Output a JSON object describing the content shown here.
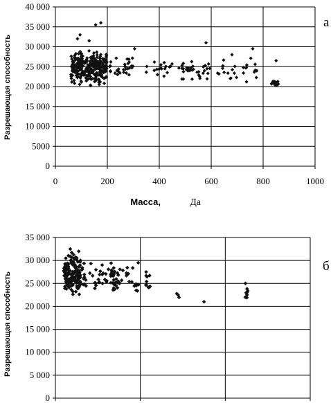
{
  "chart_data": [
    {
      "type": "scatter",
      "panel": "а",
      "xlabel": "Масса,",
      "xlabel_unit": "Да",
      "ylabel": "Разрешающая способность",
      "xlim": [
        0,
        1000
      ],
      "ylim": [
        0,
        40000
      ],
      "x_ticks": [
        "0",
        "200",
        "400",
        "600",
        "800",
        "1000"
      ],
      "y_ticks": [
        "0",
        "5000",
        "10 000",
        "15 000",
        "20 000",
        "25 000",
        "30 000",
        "35 000",
        "40 000"
      ],
      "grid": "vertical and horizontal",
      "clusters": [
        {
          "x_range": [
            60,
            200
          ],
          "y_range": [
            19500,
            30000
          ],
          "count": 320
        },
        {
          "x_range": [
            200,
            300
          ],
          "y_range": [
            21000,
            28500
          ],
          "count": 30
        },
        {
          "x_range": [
            340,
            450
          ],
          "y_range": [
            22000,
            27000
          ],
          "count": 18
        },
        {
          "x_range": [
            470,
            600
          ],
          "y_range": [
            21000,
            27500
          ],
          "count": 35
        },
        {
          "x_range": [
            620,
            780
          ],
          "y_range": [
            20000,
            28000
          ],
          "count": 25
        },
        {
          "x_range": [
            830,
            860
          ],
          "y_range": [
            20000,
            22000
          ],
          "count": 18
        }
      ],
      "outliers": [
        {
          "x": 175,
          "y": 36000
        },
        {
          "x": 155,
          "y": 35500
        },
        {
          "x": 95,
          "y": 33000
        },
        {
          "x": 85,
          "y": 32000
        },
        {
          "x": 130,
          "y": 31500
        },
        {
          "x": 305,
          "y": 29500
        },
        {
          "x": 580,
          "y": 31000
        },
        {
          "x": 760,
          "y": 29500
        },
        {
          "x": 680,
          "y": 28000
        },
        {
          "x": 850,
          "y": 26500
        }
      ]
    },
    {
      "type": "scatter",
      "panel": "б",
      "xlabel": "",
      "ylabel": "Разрешающая способность",
      "xlim": [
        0,
        1200
      ],
      "ylim": [
        0,
        35000
      ],
      "x_ticks": [],
      "y_ticks": [
        "0",
        "5 000",
        "10 000",
        "15 000",
        "20 000",
        "25 000",
        "30 000",
        "35 000"
      ],
      "grid": "vertical and horizontal",
      "clusters": [
        {
          "x_range": [
            40,
            120
          ],
          "y_range": [
            21000,
            32500
          ],
          "count": 160
        },
        {
          "x_range": [
            120,
            300
          ],
          "y_range": [
            21500,
            30500
          ],
          "count": 60
        },
        {
          "x_range": [
            300,
            450
          ],
          "y_range": [
            20500,
            30000
          ],
          "count": 30
        },
        {
          "x_range": [
            550,
            600
          ],
          "y_range": [
            21000,
            24000
          ],
          "count": 3
        },
        {
          "x_range": [
            890,
            910
          ],
          "y_range": [
            20000,
            25000
          ],
          "count": 7
        }
      ],
      "outliers": [
        {
          "x": 70,
          "y": 32500
        },
        {
          "x": 110,
          "y": 32000
        },
        {
          "x": 390,
          "y": 29500
        },
        {
          "x": 700,
          "y": 21000
        },
        {
          "x": 895,
          "y": 25000
        }
      ]
    }
  ]
}
